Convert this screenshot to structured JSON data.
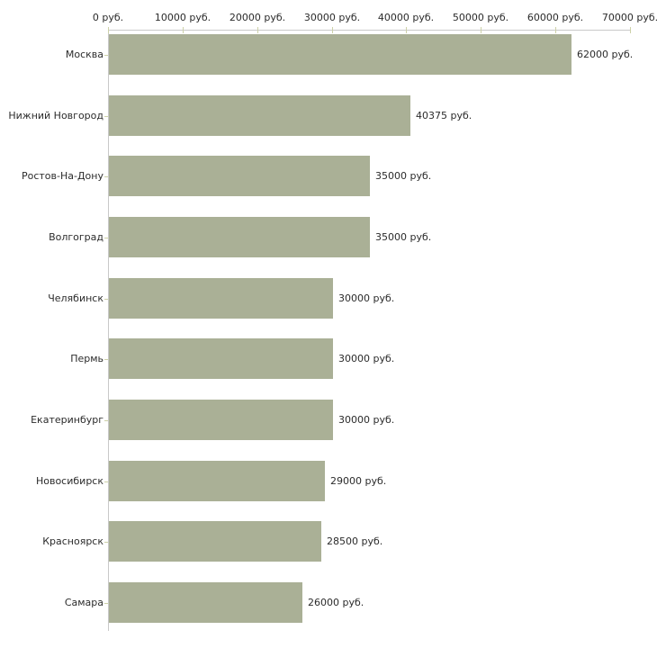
{
  "chart_data": {
    "type": "bar",
    "orientation": "horizontal",
    "title": "",
    "xlabel": "",
    "ylabel": "",
    "unit": "руб.",
    "categories": [
      "Москва",
      "Нижний Новгород",
      "Ростов-На-Дону",
      "Волгоград",
      "Челябинск",
      "Пермь",
      "Екатеринбург",
      "Новосибирск",
      "Красноярск",
      "Самара"
    ],
    "values": [
      62000,
      40375,
      35000,
      35000,
      30000,
      30000,
      30000,
      29000,
      28500,
      26000
    ],
    "value_labels": [
      "62000 руб.",
      "40375 руб.",
      "35000 руб.",
      "35000 руб.",
      "30000 руб.",
      "30000 руб.",
      "30000 руб.",
      "29000 руб.",
      "28500 руб.",
      "26000 руб."
    ],
    "x_tick_values": [
      0,
      10000,
      20000,
      30000,
      40000,
      50000,
      60000,
      70000
    ],
    "x_tick_labels": [
      "0 руб.",
      "10000 руб.",
      "20000 руб.",
      "30000 руб.",
      "40000 руб.",
      "50000 руб.",
      "60000 руб.",
      "70000 руб."
    ],
    "xlim": [
      0,
      70000
    ],
    "grid": false,
    "legend": "none",
    "colors": {
      "bar": "#aab096",
      "axis": "#c9c9c9",
      "tick": "#cdd1a8",
      "text": "#2b2b2b",
      "background": "#ffffff"
    }
  }
}
